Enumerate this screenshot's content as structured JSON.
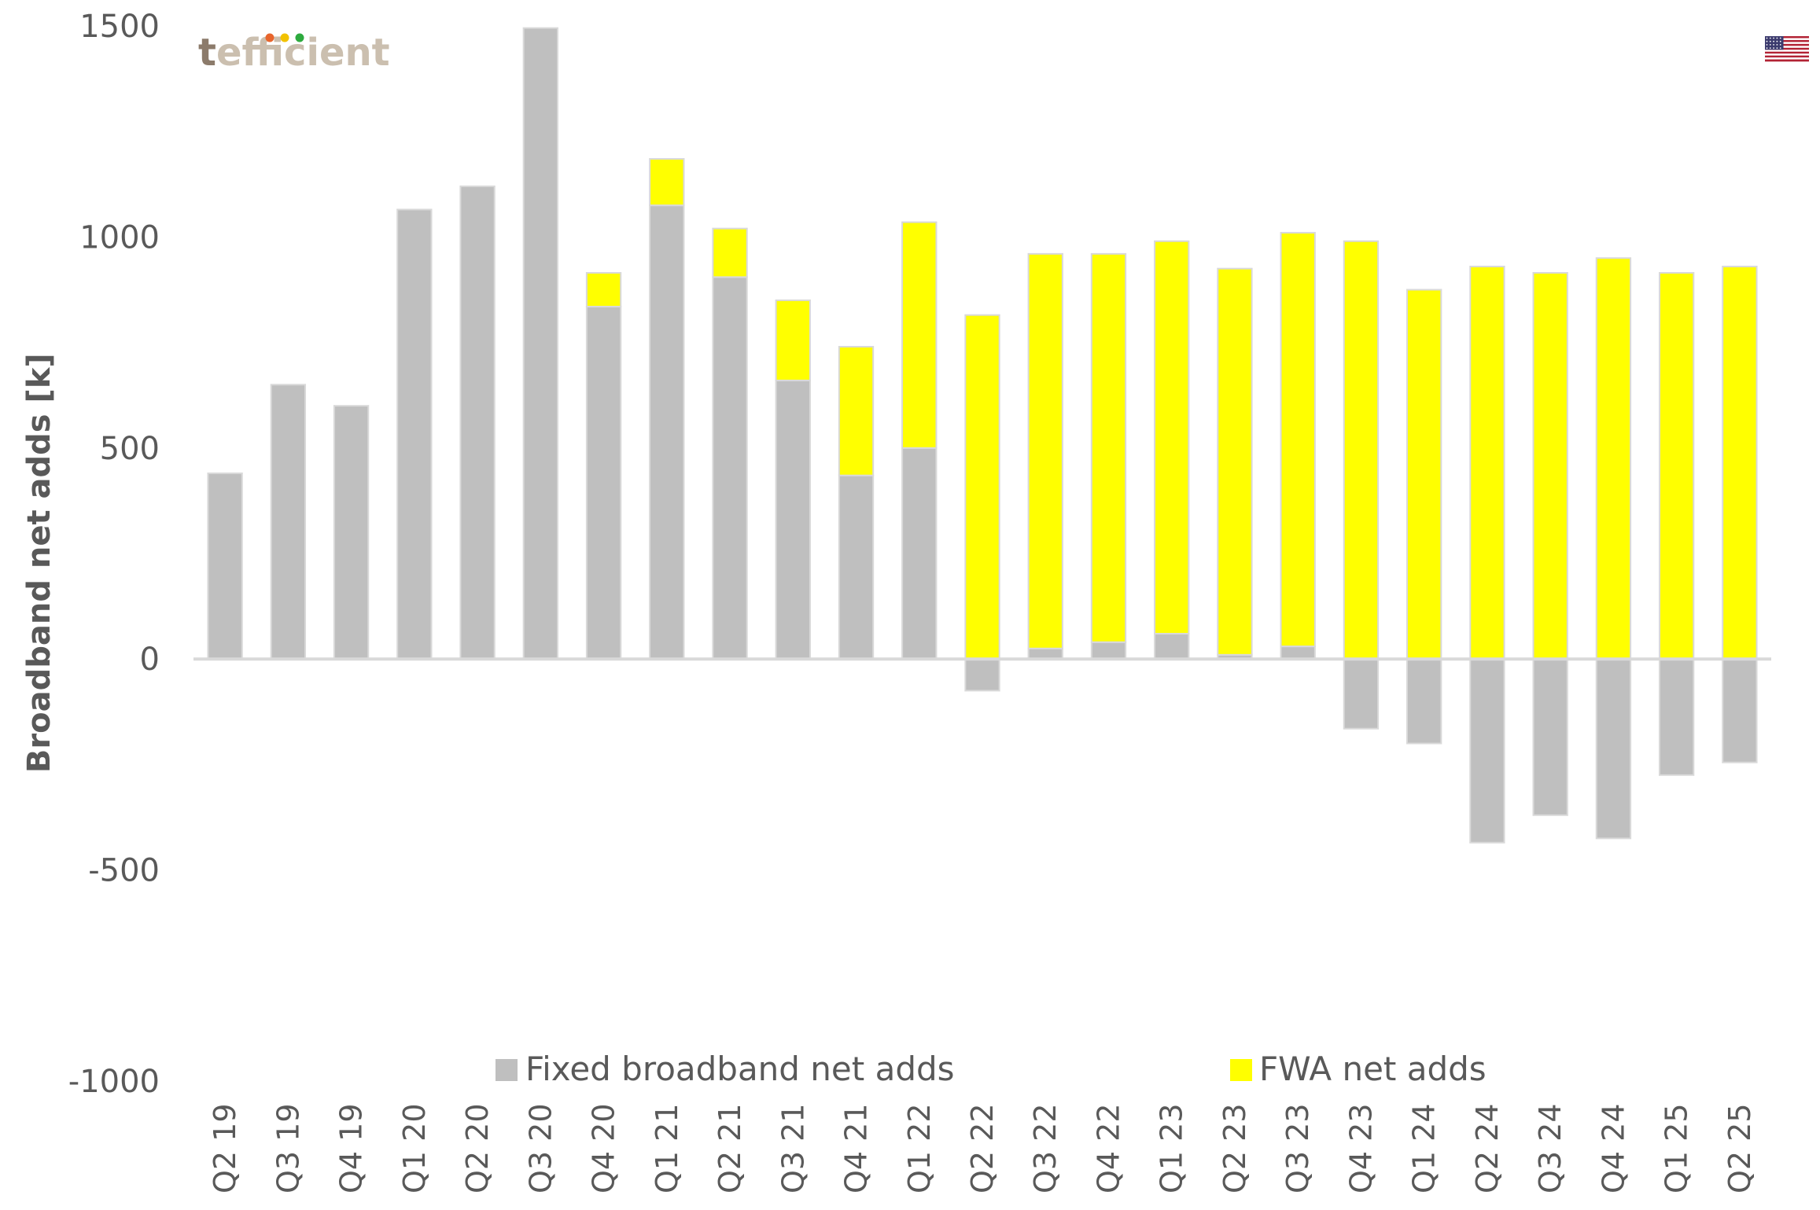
{
  "brand": {
    "logo_text": "tefficient",
    "logo_dot_colors": [
      "#E8652C",
      "#F2C200",
      "#2DAA3E"
    ],
    "flag": "us-flag-icon"
  },
  "chart_data": {
    "type": "bar",
    "stacked": true,
    "title": "",
    "ylabel": "Broadband net adds [k]",
    "xlabel": "",
    "ylim": [
      -1000,
      1500
    ],
    "yticks": [
      -1000,
      -500,
      0,
      500,
      1000,
      1500
    ],
    "grid": false,
    "legend_position": "bottom",
    "categories": [
      "Q2 19",
      "Q3 19",
      "Q4 19",
      "Q1 20",
      "Q2 20",
      "Q3 20",
      "Q4 20",
      "Q1 21",
      "Q2 21",
      "Q3 21",
      "Q4 21",
      "Q1 22",
      "Q2 22",
      "Q3 22",
      "Q4 22",
      "Q1 23",
      "Q2 23",
      "Q3 23",
      "Q4 23",
      "Q1 24",
      "Q2 24",
      "Q3 24",
      "Q4 24",
      "Q1 25",
      "Q2 25"
    ],
    "series": [
      {
        "name": "Fixed broadband net adds",
        "color": "#BFBFBF",
        "values": [
          440,
          650,
          600,
          1065,
          1120,
          1495,
          835,
          1075,
          905,
          660,
          435,
          500,
          -75,
          25,
          40,
          60,
          10,
          30,
          -165,
          -200,
          -435,
          -370,
          -425,
          -275,
          -245
        ]
      },
      {
        "name": "FWA net adds",
        "color": "#FFFF00",
        "values": [
          0,
          0,
          0,
          0,
          0,
          0,
          80,
          110,
          115,
          190,
          305,
          535,
          815,
          935,
          920,
          930,
          915,
          980,
          990,
          875,
          930,
          915,
          950,
          915,
          930
        ]
      }
    ]
  }
}
